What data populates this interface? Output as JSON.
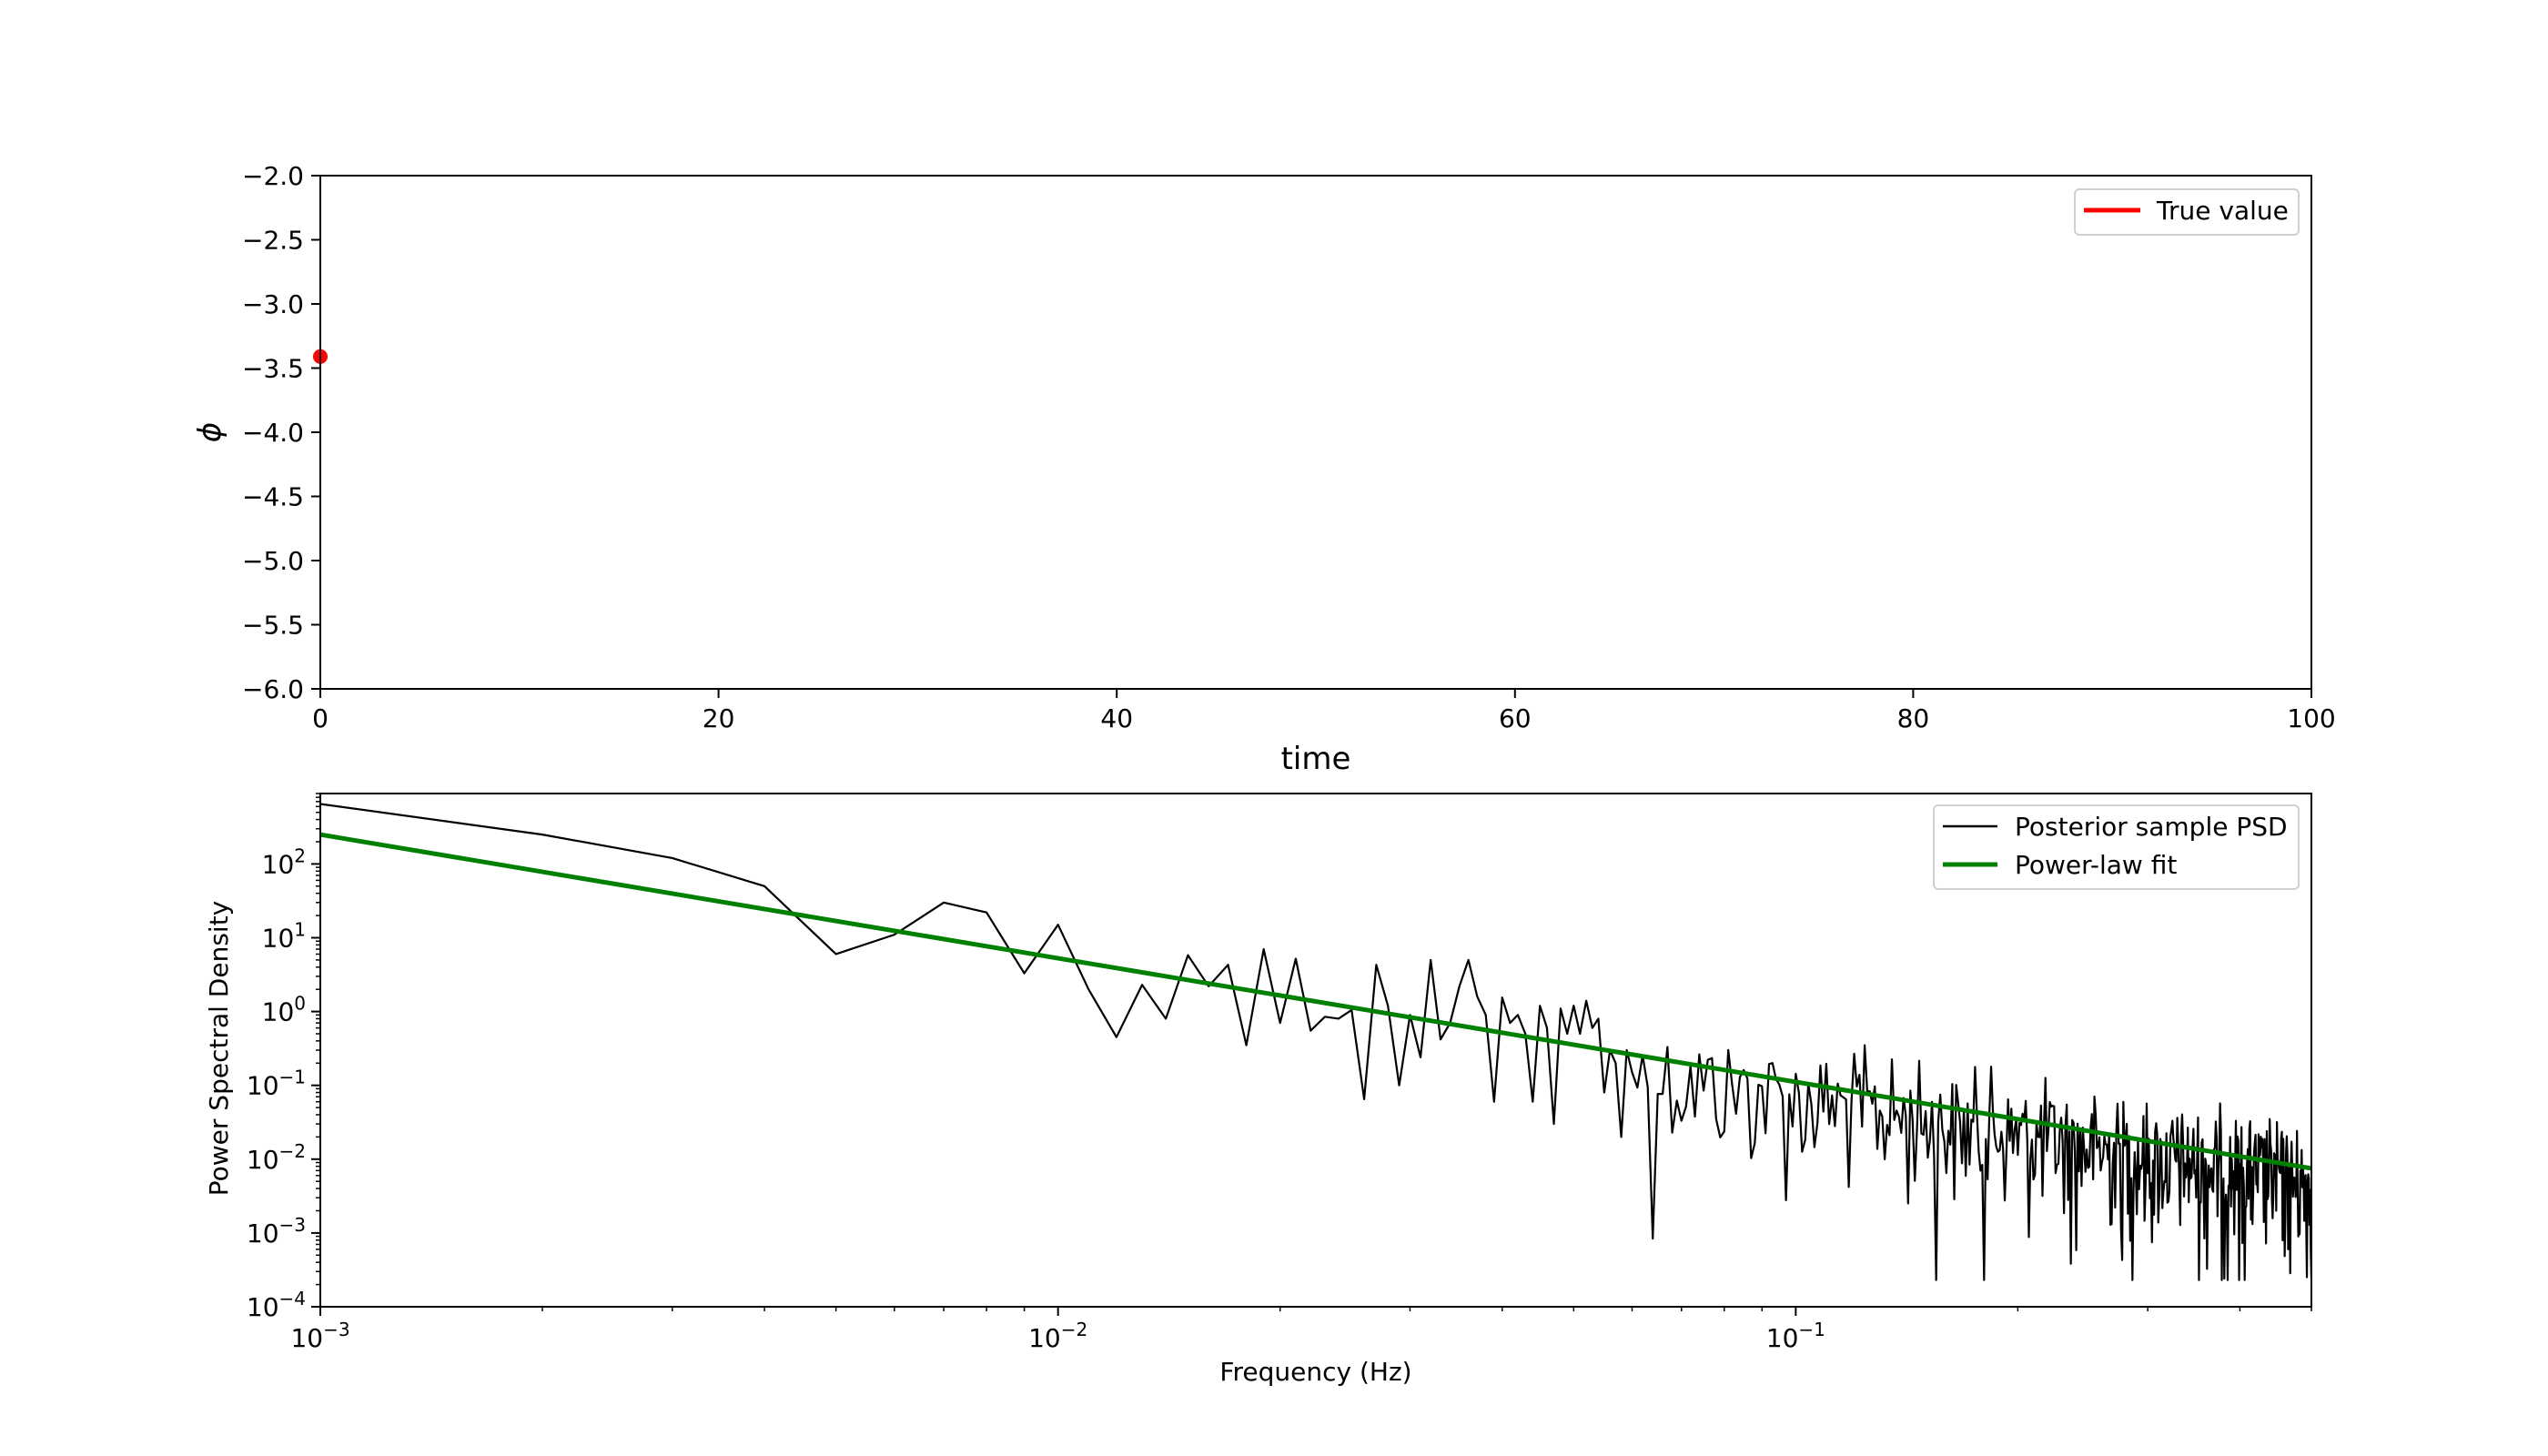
{
  "colors": {
    "true_value": "#ff0000",
    "psd_line": "#000000",
    "fit_line": "#008000",
    "axes": "#000000",
    "background": "#ffffff"
  },
  "chart_data": [
    {
      "type": "scatter",
      "xlabel": "time",
      "ylabel": "ϕ",
      "xlim": [
        0,
        100
      ],
      "ylim": [
        -6.0,
        -2.0
      ],
      "x_ticks": [
        0,
        20,
        40,
        60,
        80,
        100
      ],
      "x_tick_labels": [
        "0",
        "20",
        "40",
        "60",
        "80",
        "100"
      ],
      "y_ticks": [
        -2.0,
        -2.5,
        -3.0,
        -3.5,
        -4.0,
        -4.5,
        -5.0,
        -5.5,
        -6.0
      ],
      "y_tick_labels": [
        "−2.0",
        "−2.5",
        "−3.0",
        "−3.5",
        "−4.0",
        "−4.5",
        "−5.0",
        "−5.5",
        "−6.0"
      ],
      "grid": false,
      "legend_position": "top-right",
      "series": [
        {
          "name": "True value",
          "x": [
            0
          ],
          "y": [
            -3.41
          ]
        }
      ]
    },
    {
      "type": "line",
      "xlabel": "Frequency (Hz)",
      "ylabel": "Power Spectral Density",
      "xscale": "log",
      "yscale": "log",
      "xlim": [
        0.001,
        0.5
      ],
      "ylim": [
        0.0001,
        900
      ],
      "x_tick_labels": [
        {
          "value": 0.001,
          "base": "10",
          "exp": "−3"
        },
        {
          "value": 0.01,
          "base": "10",
          "exp": "−2"
        },
        {
          "value": 0.1,
          "base": "10",
          "exp": "−1"
        }
      ],
      "y_tick_labels": [
        {
          "value": 0.0001,
          "base": "10",
          "exp": "−4"
        },
        {
          "value": 0.001,
          "base": "10",
          "exp": "−3"
        },
        {
          "value": 0.01,
          "base": "10",
          "exp": "−2"
        },
        {
          "value": 0.1,
          "base": "10",
          "exp": "−1"
        },
        {
          "value": 1,
          "base": "10",
          "exp": "0"
        },
        {
          "value": 10,
          "base": "10",
          "exp": "1"
        },
        {
          "value": 100,
          "base": "10",
          "exp": "2"
        }
      ],
      "grid": false,
      "legend_position": "top-right",
      "series": [
        {
          "name": "Posterior sample PSD",
          "x": [
            0.001,
            0.002,
            0.003,
            0.004,
            0.005,
            0.006,
            0.007,
            0.008,
            0.009,
            0.01,
            0.011,
            0.012,
            0.013,
            0.014,
            0.015,
            0.016,
            0.017,
            0.018,
            0.019,
            0.02,
            0.021,
            0.022,
            0.023,
            0.024,
            0.025,
            0.026,
            0.027,
            0.028,
            0.029,
            0.03,
            0.031,
            0.032,
            0.033,
            0.034,
            0.035,
            0.036,
            0.037,
            0.038,
            0.039,
            0.04,
            0.041,
            0.042,
            0.043,
            0.044,
            0.045,
            0.046,
            0.047,
            0.048,
            0.049,
            0.05,
            0.051,
            0.052,
            0.053,
            0.054,
            0.055,
            0.056,
            0.057,
            0.058,
            0.059,
            0.06
          ],
          "y": [
            650,
            250,
            120,
            50,
            6,
            11,
            30,
            22,
            3.3,
            15,
            2,
            0.45,
            2.3,
            0.8,
            5.8,
            2.2,
            4.3,
            0.35,
            7,
            0.7,
            5.2,
            0.55,
            0.85,
            0.8,
            1.05,
            0.065,
            4.3,
            1.2,
            0.1,
            0.9,
            0.24,
            5,
            0.42,
            0.7,
            2.2,
            5,
            1.6,
            0.9,
            0.06,
            1.55,
            0.7,
            0.9,
            0.5,
            0.06,
            1.2,
            0.6,
            0.03,
            1.1,
            0.5,
            1.2,
            0.5,
            1.4,
            0.6,
            0.8,
            0.08,
            0.3,
            0.2,
            0.02,
            0.3,
            0.15
          ],
          "noise_tail": {
            "from": 0.06,
            "to": 0.5,
            "points": 440,
            "median_fit_ratio": 0.6,
            "min": 0.00023,
            "max": 0.9
          }
        },
        {
          "name": "Power-law fit",
          "x": [
            0.001,
            0.5
          ],
          "y": [
            250,
            0.0075
          ]
        }
      ]
    }
  ]
}
